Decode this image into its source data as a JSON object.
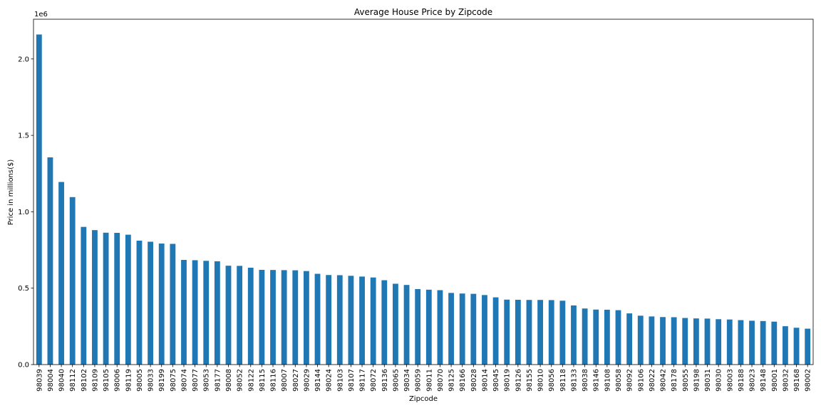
{
  "chart_data": {
    "type": "bar",
    "title": "Average House Price by Zipcode",
    "xlabel": "Zipcode",
    "ylabel": "Price in millions($)",
    "y_offset_text": "1e6",
    "ylim": [
      0,
      2260000
    ],
    "yticks": [
      0.0,
      0.5,
      1.0,
      1.5,
      2.0
    ],
    "ytick_scale": 1000000,
    "grid": false,
    "bar_color": "#1f77b4",
    "categories": [
      "98039",
      "98004",
      "98040",
      "98112",
      "98102",
      "98109",
      "98105",
      "98006",
      "98119",
      "98005",
      "98033",
      "98199",
      "98075",
      "98074",
      "98077",
      "98053",
      "98177",
      "98008",
      "98052",
      "98122",
      "98115",
      "98116",
      "98007",
      "98027",
      "98029",
      "98144",
      "98024",
      "98103",
      "98107",
      "98117",
      "98072",
      "98136",
      "98065",
      "98034",
      "98059",
      "98011",
      "98070",
      "98125",
      "98166",
      "98028",
      "98014",
      "98045",
      "98019",
      "98126",
      "98155",
      "98010",
      "98056",
      "98118",
      "98133",
      "98038",
      "98146",
      "98108",
      "98058",
      "98092",
      "98106",
      "98022",
      "98042",
      "98178",
      "98055",
      "98198",
      "98031",
      "98030",
      "98003",
      "98188",
      "98023",
      "98148",
      "98001",
      "98032",
      "98168",
      "98002"
    ],
    "values": [
      2160000,
      1356000,
      1195000,
      1096000,
      901000,
      880000,
      863000,
      862000,
      850000,
      811000,
      804000,
      792000,
      790000,
      685000,
      683000,
      679000,
      676000,
      647000,
      646000,
      634000,
      620000,
      619000,
      618000,
      617000,
      612000,
      594000,
      586000,
      585000,
      581000,
      576000,
      570000,
      552000,
      529000,
      521000,
      494000,
      490000,
      487000,
      469000,
      465000,
      463000,
      455000,
      440000,
      425000,
      424000,
      423000,
      423000,
      422000,
      418000,
      387000,
      367000,
      360000,
      359000,
      356000,
      335000,
      320000,
      315000,
      311000,
      310000,
      305000,
      302000,
      301000,
      297000,
      295000,
      291000,
      287000,
      285000,
      281000,
      251000,
      241000,
      235000
    ]
  }
}
